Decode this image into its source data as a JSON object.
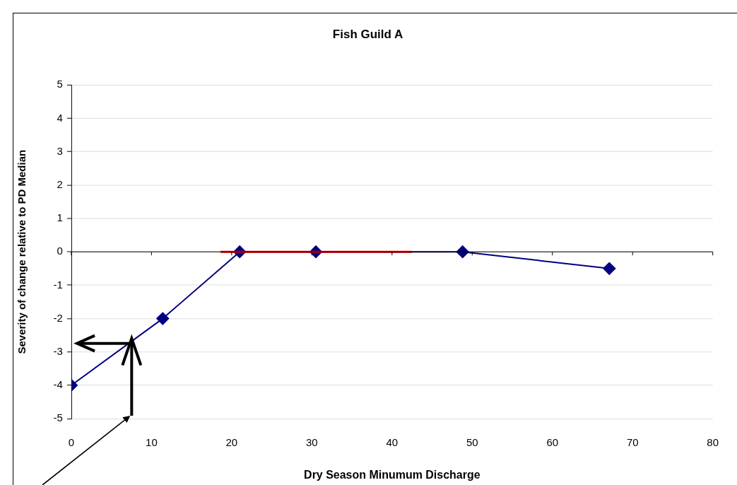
{
  "chart_data": {
    "type": "line",
    "title": "Fish Guild A",
    "xlabel": "Dry Season Minumum Discharge",
    "ylabel": "Severity of change relative to PD Median",
    "xlim": [
      0,
      80
    ],
    "xticks": [
      0,
      10,
      20,
      30,
      40,
      50,
      60,
      70,
      80
    ],
    "ylim": [
      -5,
      5
    ],
    "yticks": [
      -5,
      -4,
      -3,
      -2,
      -1,
      0,
      1,
      2,
      3,
      4,
      5
    ],
    "grid": "y",
    "legend": false,
    "series": [
      {
        "color": "#ff0000",
        "x": [
          18.6,
          42.5
        ],
        "values": [
          0,
          0
        ],
        "marker": "none"
      },
      {
        "color": "#000080",
        "x": [
          0,
          11.4,
          21,
          30.5,
          48.8,
          67.1
        ],
        "values": [
          -4,
          -2,
          0,
          0,
          0,
          -0.5
        ],
        "marker": "diamond"
      }
    ]
  }
}
